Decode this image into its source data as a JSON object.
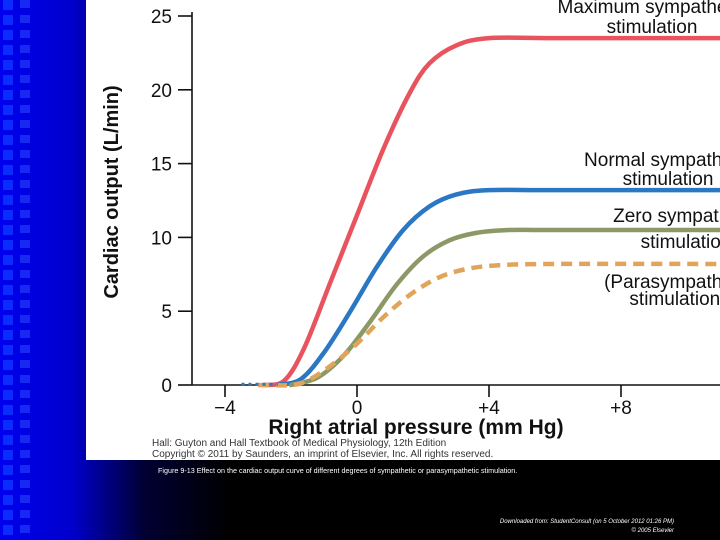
{
  "chart_data": {
    "type": "line",
    "xlabel": "Right atrial pressure (mm Hg)",
    "ylabel": "Cardiac output (L/min)",
    "xlim": [
      -5,
      11
    ],
    "ylim": [
      0,
      25
    ],
    "x_ticks": [
      "−4",
      "0",
      "+4",
      "+8"
    ],
    "x_tick_values": [
      -4,
      0,
      4,
      8
    ],
    "y_ticks": [
      "0",
      "5",
      "10",
      "15",
      "20",
      "25"
    ],
    "y_tick_values": [
      0,
      5,
      10,
      15,
      20,
      25
    ],
    "grid": false,
    "series": [
      {
        "name": "Maximum sympathetic stimulation",
        "label_lines": [
          "Maximum sympathetic",
          "stimulation"
        ],
        "color": "#e8535e",
        "dashed": false,
        "x": [
          -2.8,
          -2.2,
          -1.6,
          -0.8,
          0,
          0.8,
          1.6,
          2.2,
          3.0,
          4.0,
          6.0,
          11.0
        ],
        "y": [
          0,
          0.3,
          2.5,
          7.0,
          11.5,
          16.0,
          19.8,
          21.8,
          23.0,
          23.5,
          23.5,
          23.5
        ]
      },
      {
        "name": "Normal sympathetic stimulation",
        "label_lines": [
          "Normal sympathetic",
          "stimulation"
        ],
        "color": "#2a77c3",
        "dashed": false,
        "x": [
          -2.4,
          -1.7,
          -1.0,
          -0.2,
          0.6,
          1.4,
          2.2,
          3.0,
          4.0,
          6.0,
          11.0
        ],
        "y": [
          0,
          0.4,
          2.2,
          5.0,
          8.0,
          10.5,
          12.1,
          12.9,
          13.2,
          13.2,
          13.2
        ]
      },
      {
        "name": "Zero sympathetic stimulation",
        "label_lines": [
          "Zero sympathetic",
          "stimulation"
        ],
        "color": "#8c9966",
        "dashed": false,
        "x": [
          -2.0,
          -1.2,
          -0.4,
          0.4,
          1.2,
          2.0,
          2.8,
          3.6,
          4.6,
          6.0,
          11.0
        ],
        "y": [
          0,
          0.5,
          2.0,
          4.3,
          6.8,
          8.7,
          9.8,
          10.3,
          10.5,
          10.5,
          10.5
        ]
      },
      {
        "name": "(Parasympathetic stimulation)",
        "label_lines": [
          "(Parasympathetic",
          "stimulation)"
        ],
        "color": "#e0a45a",
        "dashed": true,
        "x": [
          -3.0,
          -2.0,
          -1.5,
          -0.8,
          0,
          0.8,
          1.6,
          2.4,
          3.2,
          4.2,
          6.0,
          11.0
        ],
        "y": [
          0,
          0,
          0.3,
          1.3,
          2.8,
          4.6,
          6.1,
          7.2,
          7.8,
          8.1,
          8.2,
          8.2
        ]
      }
    ]
  },
  "copyright": {
    "line1": "Hall: Guyton and Hall Textbook of Medical Physiology, 12th Edition",
    "line2": "Copyright © 2011 by Saunders, an imprint of Elsevier, Inc. All rights reserved."
  },
  "caption": "Figure 9-13 Effect on the cardiac output curve of different degrees of sympathetic or parasympathetic stimulation.",
  "download": {
    "line1": "Downloaded from: StudentConsult (on 5 October 2012 01:26 PM)",
    "line2": "© 2005 Elsevier"
  }
}
